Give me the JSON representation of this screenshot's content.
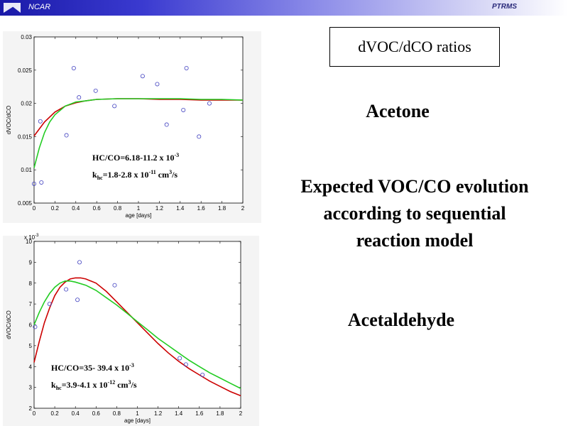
{
  "header": {
    "org": "NCAR",
    "project": "PTRMS",
    "banner_colors": [
      "#1a1aa8",
      "#ffffff"
    ]
  },
  "slide": {
    "title": "dVOC/dCO ratios",
    "acetone_label": "Acetone",
    "description": "Expected VOC/CO evolution according to sequential reaction model",
    "acetaldehyde_label": "Acetaldehyde"
  },
  "chart_data": [
    {
      "type": "scatter",
      "title": "",
      "xlabel": "age [days]",
      "ylabel": "dVOC/dCO",
      "xlim": [
        0,
        2
      ],
      "ylim": [
        0.005,
        0.03
      ],
      "xticks": [
        0,
        0.2,
        0.4,
        0.6,
        0.8,
        1,
        1.2,
        1.4,
        1.6,
        1.8,
        2
      ],
      "yticks": [
        0.005,
        0.01,
        0.015,
        0.02,
        0.025,
        0.03
      ],
      "xtick_labels": [
        "0",
        "0.2",
        "0.4",
        "0.6",
        "0.8",
        "1",
        "1.2",
        "1.4",
        "1.6",
        "1.8",
        "2"
      ],
      "ytick_labels": [
        "0.005",
        "0.01",
        "0.015",
        "0.02",
        "0.025",
        "0.03"
      ],
      "exponent_label": "",
      "grid": false,
      "points": {
        "color": "#4040c0",
        "x": [
          0.0,
          0.07,
          0.06,
          0.31,
          0.38,
          0.43,
          0.59,
          0.77,
          1.04,
          1.18,
          1.27,
          1.43,
          1.46,
          1.58,
          1.68
        ],
        "y": [
          0.0079,
          0.0081,
          0.0173,
          0.0152,
          0.0253,
          0.0209,
          0.0219,
          0.0196,
          0.0241,
          0.0229,
          0.0168,
          0.019,
          0.0253,
          0.015,
          0.02
        ]
      },
      "series": [
        {
          "color": "#cc0000",
          "x": [
            0,
            0.1,
            0.2,
            0.3,
            0.4,
            0.5,
            0.6,
            0.8,
            1.0,
            1.2,
            1.4,
            1.6,
            1.8,
            2.0
          ],
          "y": [
            0.0151,
            0.0172,
            0.0187,
            0.0196,
            0.0201,
            0.0204,
            0.0206,
            0.0207,
            0.0207,
            0.0206,
            0.0206,
            0.0205,
            0.0205,
            0.0205
          ]
        },
        {
          "color": "#22cc22",
          "x": [
            0,
            0.05,
            0.1,
            0.15,
            0.2,
            0.3,
            0.4,
            0.5,
            0.6,
            0.8,
            1.0,
            1.2,
            1.4,
            1.6,
            1.8,
            2.0
          ],
          "y": [
            0.0103,
            0.0133,
            0.0156,
            0.0172,
            0.0183,
            0.0196,
            0.0202,
            0.0204,
            0.0206,
            0.0207,
            0.0207,
            0.0207,
            0.0207,
            0.0206,
            0.0206,
            0.0205
          ]
        }
      ],
      "annotation": {
        "line1_main": "HC/CO=6.18-11.2 x 10",
        "line1_sup": "-3",
        "line2_k": "k",
        "line2_sub": "hc",
        "line2_main": "=1.8-2.8 x 10",
        "line2_sup": "-11",
        "line2_unit": " cm",
        "line2_unit_sup": "3",
        "line2_tail": "/s"
      }
    },
    {
      "type": "scatter",
      "title": "",
      "xlabel": "age [days]",
      "ylabel": "dVOC/dCO",
      "xlim": [
        0,
        2
      ],
      "ylim": [
        2,
        10
      ],
      "xticks": [
        0,
        0.2,
        0.4,
        0.6,
        0.8,
        1,
        1.2,
        1.4,
        1.6,
        1.8,
        2
      ],
      "yticks": [
        2,
        3,
        4,
        5,
        6,
        7,
        8,
        9,
        10
      ],
      "xtick_labels": [
        "0",
        "0.2",
        "0.4",
        "0.6",
        "0.8",
        "1",
        "1.2",
        "1.4",
        "1.6",
        "1.8",
        "2"
      ],
      "ytick_labels": [
        "2",
        "3",
        "4",
        "5",
        "6",
        "7",
        "8",
        "9",
        "10"
      ],
      "exponent_label": "x 10",
      "exponent_sup": "-3",
      "grid": false,
      "points": {
        "color": "#4040c0",
        "x": [
          0.01,
          0.15,
          0.31,
          0.42,
          0.44,
          0.78,
          1.41,
          1.47,
          1.63
        ],
        "y": [
          5.9,
          7.0,
          7.7,
          7.2,
          9.0,
          7.9,
          4.4,
          4.1,
          3.6
        ]
      },
      "series": [
        {
          "color": "#cc0000",
          "x": [
            0,
            0.05,
            0.1,
            0.15,
            0.2,
            0.25,
            0.3,
            0.35,
            0.4,
            0.45,
            0.5,
            0.6,
            0.7,
            0.8,
            0.9,
            1.0,
            1.1,
            1.2,
            1.3,
            1.4,
            1.5,
            1.6,
            1.7,
            1.8,
            1.9,
            2.0
          ],
          "y": [
            4.2,
            5.2,
            6.1,
            6.8,
            7.4,
            7.8,
            8.05,
            8.2,
            8.25,
            8.25,
            8.2,
            8.0,
            7.6,
            7.1,
            6.6,
            6.1,
            5.6,
            5.1,
            4.65,
            4.25,
            3.9,
            3.6,
            3.3,
            3.05,
            2.8,
            2.6
          ]
        },
        {
          "color": "#22cc22",
          "x": [
            0,
            0.05,
            0.1,
            0.15,
            0.2,
            0.25,
            0.3,
            0.35,
            0.4,
            0.5,
            0.6,
            0.7,
            0.8,
            0.9,
            1.0,
            1.1,
            1.2,
            1.3,
            1.4,
            1.5,
            1.6,
            1.7,
            1.8,
            1.9,
            2.0
          ],
          "y": [
            6.0,
            6.6,
            7.1,
            7.5,
            7.8,
            8.0,
            8.1,
            8.1,
            8.05,
            7.9,
            7.65,
            7.3,
            6.95,
            6.55,
            6.15,
            5.75,
            5.35,
            5.0,
            4.65,
            4.3,
            4.0,
            3.7,
            3.45,
            3.2,
            2.95
          ]
        }
      ],
      "annotation": {
        "line1_main": "HC/CO=35- 39.4 x 10",
        "line1_sup": "-3",
        "line2_k": "k",
        "line2_sub": "hc",
        "line2_main": "=3.9-4.1 x 10",
        "line2_sup": "-12",
        "line2_unit": " cm",
        "line2_unit_sup": "3",
        "line2_tail": "/s"
      }
    }
  ]
}
